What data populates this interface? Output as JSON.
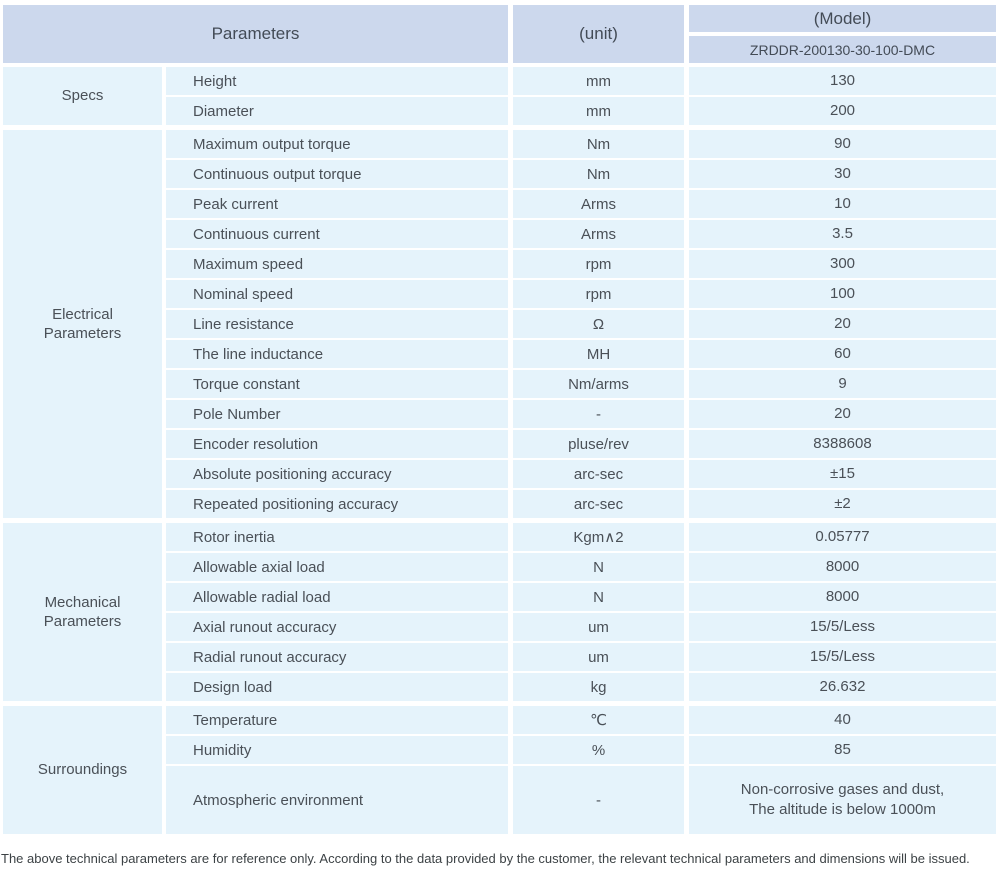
{
  "header": {
    "parameters_label": "Parameters",
    "unit_label": "(unit)",
    "model_label": "(Model)",
    "model_value": "ZRDDR-200130-30-100-DMC"
  },
  "sections": [
    {
      "group": "Specs",
      "rows": [
        {
          "name": "Height",
          "unit": "mm",
          "value": "130"
        },
        {
          "name": "Diameter",
          "unit": "mm",
          "value": "200"
        }
      ]
    },
    {
      "group": "Electrical\nParameters",
      "rows": [
        {
          "name": "Maximum output torque",
          "unit": "Nm",
          "value": "90"
        },
        {
          "name": "Continuous output torque",
          "unit": "Nm",
          "value": "30"
        },
        {
          "name": "Peak current",
          "unit": "Arms",
          "value": "10"
        },
        {
          "name": "Continuous current",
          "unit": "Arms",
          "value": "3.5"
        },
        {
          "name": "Maximum speed",
          "unit": "rpm",
          "value": "300"
        },
        {
          "name": "Nominal speed",
          "unit": "rpm",
          "value": "100"
        },
        {
          "name": "Line resistance",
          "unit": "Ω",
          "value": "20"
        },
        {
          "name": "The line inductance",
          "unit": "MH",
          "value": "60"
        },
        {
          "name": "Torque constant",
          "unit": "Nm/arms",
          "value": "9"
        },
        {
          "name": "Pole Number",
          "unit": "-",
          "value": "20"
        },
        {
          "name": "Encoder resolution",
          "unit": "pluse/rev",
          "value": "8388608"
        },
        {
          "name": "Absolute positioning accuracy",
          "unit": "arc-sec",
          "value": "±15"
        },
        {
          "name": "Repeated positioning accuracy",
          "unit": "arc-sec",
          "value": "±2"
        }
      ]
    },
    {
      "group": "Mechanical\nParameters",
      "rows": [
        {
          "name": "Rotor inertia",
          "unit": "Kgm∧2",
          "value": "0.05777"
        },
        {
          "name": "Allowable axial load",
          "unit": "N",
          "value": "8000"
        },
        {
          "name": "Allowable radial load",
          "unit": "N",
          "value": "8000"
        },
        {
          "name": "Axial runout accuracy",
          "unit": "um",
          "value": "15/5/Less"
        },
        {
          "name": "Radial runout accuracy",
          "unit": "um",
          "value": "15/5/Less"
        },
        {
          "name": "Design load",
          "unit": "kg",
          "value": "26.632"
        }
      ]
    },
    {
      "group": "Surroundings",
      "rows": [
        {
          "name": "Temperature",
          "unit": "℃",
          "value": "40"
        },
        {
          "name": "Humidity",
          "unit": "%",
          "value": "85"
        },
        {
          "name": "Atmospheric environment",
          "unit": "-",
          "value": "Non-corrosive gases and dust,\nThe altitude is below 1000m"
        }
      ]
    }
  ],
  "footer": {
    "note": "The above technical parameters are for reference only. According to the data provided by the customer, the relevant technical parameters and dimensions will be issued."
  },
  "colors": {
    "header_bg": "#ccd8ed",
    "row_bg": "#e5f3fb",
    "text": "#4a5057",
    "footer_text": "#3c4245",
    "separator": "#ffffff"
  }
}
